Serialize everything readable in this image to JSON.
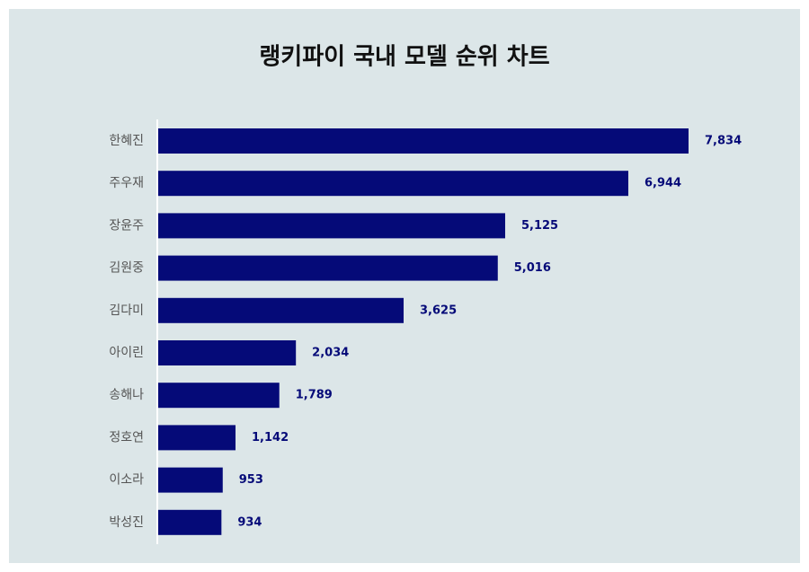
{
  "chart_data": {
    "type": "bar",
    "orientation": "horizontal",
    "title": "랭키파이 국내 모델 순위 차트",
    "categories": [
      "한혜진",
      "주우재",
      "장윤주",
      "김원중",
      "김다미",
      "아이린",
      "송해나",
      "정호연",
      "이소라",
      "박성진"
    ],
    "values": [
      7834,
      6944,
      5125,
      5016,
      3625,
      2034,
      1789,
      1142,
      953,
      934
    ],
    "value_labels": [
      "7,834",
      "6,944",
      "5,125",
      "5,016",
      "3,625",
      "2,034",
      "1,789",
      "1,142",
      "953",
      "934"
    ],
    "color": "#050a78"
  }
}
